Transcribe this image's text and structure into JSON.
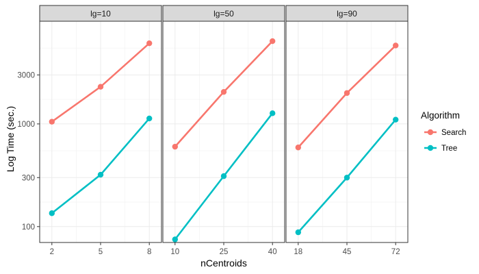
{
  "chart_data": {
    "type": "line",
    "xlabel": "nCentroids",
    "ylabel": "Log Time (sec.)",
    "y_scale": "log",
    "ylim": [
      70,
      10000
    ],
    "y_ticks": [
      100,
      300,
      1000,
      3000
    ],
    "grid": true,
    "legend": {
      "title": "Algorithm",
      "position": "right",
      "entries": [
        "Search",
        "Tree"
      ]
    },
    "colors": {
      "Search": "#F8766D",
      "Tree": "#00BFC4"
    },
    "facets": [
      {
        "label": "lg=10",
        "x": [
          2,
          5,
          8
        ],
        "series": [
          {
            "name": "Search",
            "values": [
              1050,
              2300,
              6100
            ]
          },
          {
            "name": "Tree",
            "values": [
              135,
              320,
              1130
            ]
          }
        ]
      },
      {
        "label": "lg=50",
        "x": [
          10,
          25,
          40
        ],
        "series": [
          {
            "name": "Search",
            "values": [
              600,
              2050,
              6400
            ]
          },
          {
            "name": "Tree",
            "values": [
              75,
              310,
              1270
            ]
          }
        ]
      },
      {
        "label": "lg=90",
        "x": [
          18,
          45,
          72
        ],
        "series": [
          {
            "name": "Search",
            "values": [
              590,
              2000,
              5800
            ]
          },
          {
            "name": "Tree",
            "values": [
              88,
              300,
              1100
            ]
          }
        ]
      }
    ]
  }
}
